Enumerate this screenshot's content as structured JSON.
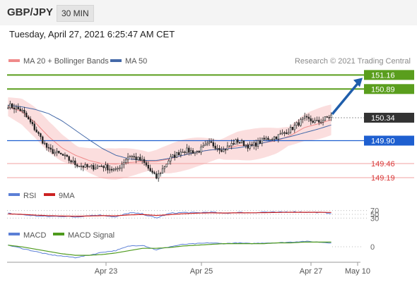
{
  "header": {
    "symbol": "GBP/JPY",
    "timeframe": "30 MIN"
  },
  "timestamp": "Tuesday, April 27, 2021 6:25:47 AM CET",
  "credit": "Research © 2021 Trading Central",
  "colors": {
    "resistance": "#5a9e1d",
    "current": "#333333",
    "pivot": "#1e5fd0",
    "support": "#d93a3a",
    "bollinger_fill": "#fbdede",
    "ma20": "#f08a8a",
    "ma50": "#4469a8",
    "arrow": "#1f5eab",
    "candle_up": "#ffffff",
    "candle_down": "#222222",
    "rsi": "#5b7fd6",
    "rsi_ma": "#cc2222",
    "macd": "#5b7fd6",
    "macd_signal": "#4e9a1d"
  },
  "chart_data": [
    {
      "type": "candlestick",
      "legend": [
        "MA 20 + Bollinger Bands",
        "MA 50"
      ],
      "x_ticks": [
        "Apr 23",
        "Apr 25",
        "Apr 27",
        "May 10"
      ],
      "ylim": [
        149.0,
        151.3
      ],
      "levels": [
        {
          "value": 151.16,
          "label": "151.16",
          "kind": "resistance"
        },
        {
          "value": 150.89,
          "label": "150.89",
          "kind": "resistance"
        },
        {
          "value": 150.34,
          "label": "150.34",
          "kind": "current"
        },
        {
          "value": 149.9,
          "label": "149.90",
          "kind": "pivot"
        },
        {
          "value": 149.46,
          "label": "149.46",
          "kind": "support"
        },
        {
          "value": 149.19,
          "label": "149.19",
          "kind": "support"
        }
      ],
      "close_anchors": [
        150.58,
        150.48,
        150.12,
        149.72,
        149.62,
        149.45,
        149.38,
        149.42,
        149.32,
        149.62,
        149.5,
        149.18,
        149.55,
        149.72,
        149.68,
        149.85,
        149.72,
        149.9,
        149.78,
        149.92,
        149.98,
        150.12,
        150.32,
        150.25,
        150.38
      ],
      "ma20_anchors": [
        150.55,
        150.46,
        150.25,
        149.98,
        149.76,
        149.62,
        149.52,
        149.46,
        149.45,
        149.48,
        149.5,
        149.5,
        149.55,
        149.62,
        149.68,
        149.72,
        149.74,
        149.8,
        149.82,
        149.86,
        149.9,
        150.0,
        150.15,
        150.22,
        150.3
      ],
      "ma50_anchors": [
        150.58,
        150.55,
        150.5,
        150.42,
        150.28,
        150.1,
        149.92,
        149.75,
        149.62,
        149.55,
        149.52,
        149.52,
        149.56,
        149.62,
        149.68,
        149.72,
        149.74,
        149.76,
        149.8,
        149.86,
        149.92,
        149.98,
        150.05,
        150.12,
        150.2
      ]
    },
    {
      "type": "line",
      "legend": [
        "RSI",
        "9MA"
      ],
      "y_ticks": [
        "70",
        "50",
        "30"
      ],
      "series": [
        {
          "name": "RSI",
          "values": [
            55,
            48,
            42,
            38,
            40,
            36,
            44,
            46,
            35,
            58,
            52,
            30,
            55,
            60,
            58,
            62,
            55,
            60,
            58,
            62,
            60,
            64,
            62,
            60,
            56
          ]
        },
        {
          "name": "9MA",
          "values": [
            52,
            50,
            46,
            43,
            41,
            40,
            41,
            43,
            42,
            47,
            49,
            44,
            48,
            53,
            56,
            58,
            57,
            58,
            58,
            59,
            60,
            61,
            61,
            61,
            60
          ]
        }
      ]
    },
    {
      "type": "line",
      "legend": [
        "MACD",
        "MACD Signal"
      ],
      "y_ticks": [
        "0"
      ],
      "series": [
        {
          "name": "MACD",
          "values": [
            0.02,
            -0.02,
            -0.06,
            -0.1,
            -0.12,
            -0.14,
            -0.11,
            -0.07,
            -0.05,
            0.01,
            0.02,
            -0.04,
            0.0,
            0.03,
            0.04,
            0.05,
            0.04,
            0.05,
            0.04,
            0.05,
            0.05,
            0.06,
            0.07,
            0.06,
            0.05
          ]
        },
        {
          "name": "MACD Signal",
          "values": [
            0.02,
            0.0,
            -0.03,
            -0.06,
            -0.09,
            -0.11,
            -0.11,
            -0.1,
            -0.08,
            -0.05,
            -0.02,
            -0.02,
            -0.01,
            0.01,
            0.02,
            0.03,
            0.04,
            0.04,
            0.04,
            0.04,
            0.05,
            0.05,
            0.06,
            0.06,
            0.06
          ]
        }
      ]
    }
  ]
}
